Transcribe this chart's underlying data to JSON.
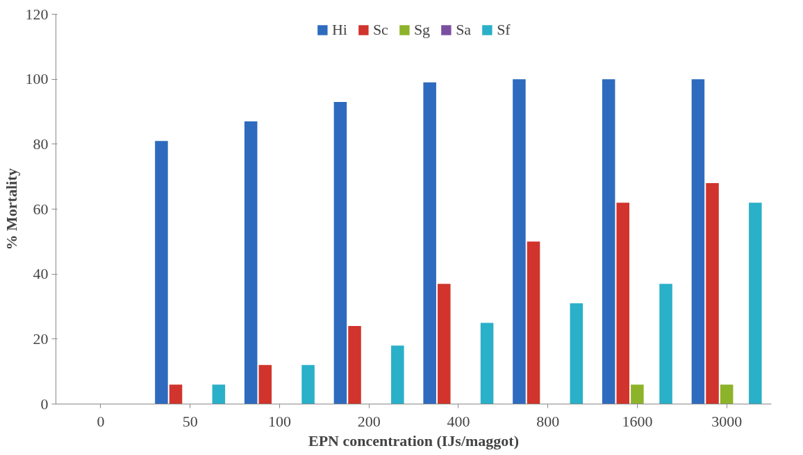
{
  "chart_data": {
    "type": "bar",
    "xlabel": "EPN concentration (IJs/maggot)",
    "ylabel": "% Mortality",
    "categories": [
      "0",
      "50",
      "100",
      "200",
      "400",
      "800",
      "1600",
      "3000"
    ],
    "series": [
      {
        "name": "Hi",
        "color": "#2e6bbf",
        "values": [
          0,
          81,
          87,
          93,
          99,
          100,
          100,
          100
        ]
      },
      {
        "name": "Sc",
        "color": "#d0342c",
        "values": [
          0,
          6,
          12,
          24,
          37,
          50,
          62,
          68
        ]
      },
      {
        "name": "Sg",
        "color": "#8db32a",
        "values": [
          0,
          0,
          0,
          0,
          0,
          0,
          6,
          6
        ]
      },
      {
        "name": "Sa",
        "color": "#7a4fa0",
        "values": [
          0,
          0,
          0,
          0,
          0,
          0,
          0,
          0
        ]
      },
      {
        "name": "Sf",
        "color": "#2ab0c8",
        "values": [
          0,
          6,
          12,
          18,
          25,
          31,
          37,
          62
        ]
      }
    ],
    "ylim": [
      0,
      120
    ],
    "yticks": [
      0,
      20,
      40,
      60,
      80,
      100,
      120
    ],
    "grid": false,
    "legend": "top"
  }
}
